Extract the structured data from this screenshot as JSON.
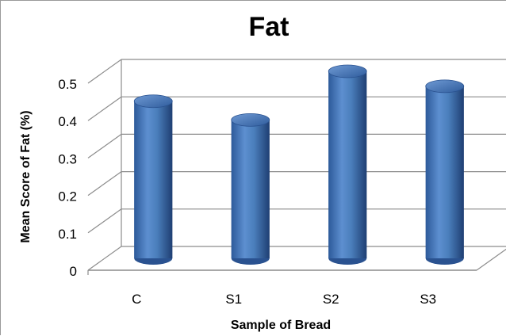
{
  "chart_data": {
    "type": "bar",
    "title": "Fat",
    "xlabel": "Sample of Bread",
    "ylabel": "Mean Score of Fat (%)",
    "categories": [
      "C",
      "S1",
      "S2",
      "S3"
    ],
    "values": [
      0.42,
      0.37,
      0.5,
      0.46
    ],
    "ylim": [
      0,
      0.5
    ],
    "yticks": [
      "0",
      "0.1",
      "0.2",
      "0.3",
      "0.4",
      "0.5"
    ],
    "grid": true,
    "bar_style": "3d-cylinder",
    "colors": {
      "bar": "#4a7ebb",
      "bar_dark": "#23457a",
      "bar_light": "#8fb4e3",
      "grid": "#8c8c8c"
    }
  }
}
